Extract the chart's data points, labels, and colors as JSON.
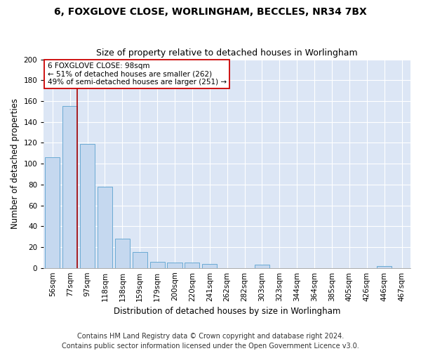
{
  "title1": "6, FOXGLOVE CLOSE, WORLINGHAM, BECCLES, NR34 7BX",
  "title2": "Size of property relative to detached houses in Worlingham",
  "xlabel": "Distribution of detached houses by size in Worlingham",
  "ylabel": "Number of detached properties",
  "categories": [
    "56sqm",
    "77sqm",
    "97sqm",
    "118sqm",
    "138sqm",
    "159sqm",
    "179sqm",
    "200sqm",
    "220sqm",
    "241sqm",
    "262sqm",
    "282sqm",
    "303sqm",
    "323sqm",
    "344sqm",
    "364sqm",
    "385sqm",
    "405sqm",
    "426sqm",
    "446sqm",
    "467sqm"
  ],
  "values": [
    106,
    155,
    119,
    78,
    28,
    15,
    6,
    5,
    5,
    4,
    0,
    0,
    3,
    0,
    0,
    0,
    0,
    0,
    0,
    2,
    0
  ],
  "bar_color": "#c5d8ef",
  "bar_edge_color": "#6aaad4",
  "vline_x_idx": 1,
  "vline_color": "#aa0000",
  "annotation_line1": "6 FOXGLOVE CLOSE: 98sqm",
  "annotation_line2": "← 51% of detached houses are smaller (262)",
  "annotation_line3": "49% of semi-detached houses are larger (251) →",
  "annotation_box_color": "#ffffff",
  "annotation_box_edge": "#cc0000",
  "ylim": [
    0,
    200
  ],
  "yticks": [
    0,
    20,
    40,
    60,
    80,
    100,
    120,
    140,
    160,
    180,
    200
  ],
  "plot_bg_color": "#dce6f5",
  "grid_color": "#ffffff",
  "footer": "Contains HM Land Registry data © Crown copyright and database right 2024.\nContains public sector information licensed under the Open Government Licence v3.0.",
  "title_fontsize": 10,
  "subtitle_fontsize": 9,
  "axis_label_fontsize": 8.5,
  "tick_fontsize": 7.5,
  "footer_fontsize": 7,
  "annot_fontsize": 7.5
}
